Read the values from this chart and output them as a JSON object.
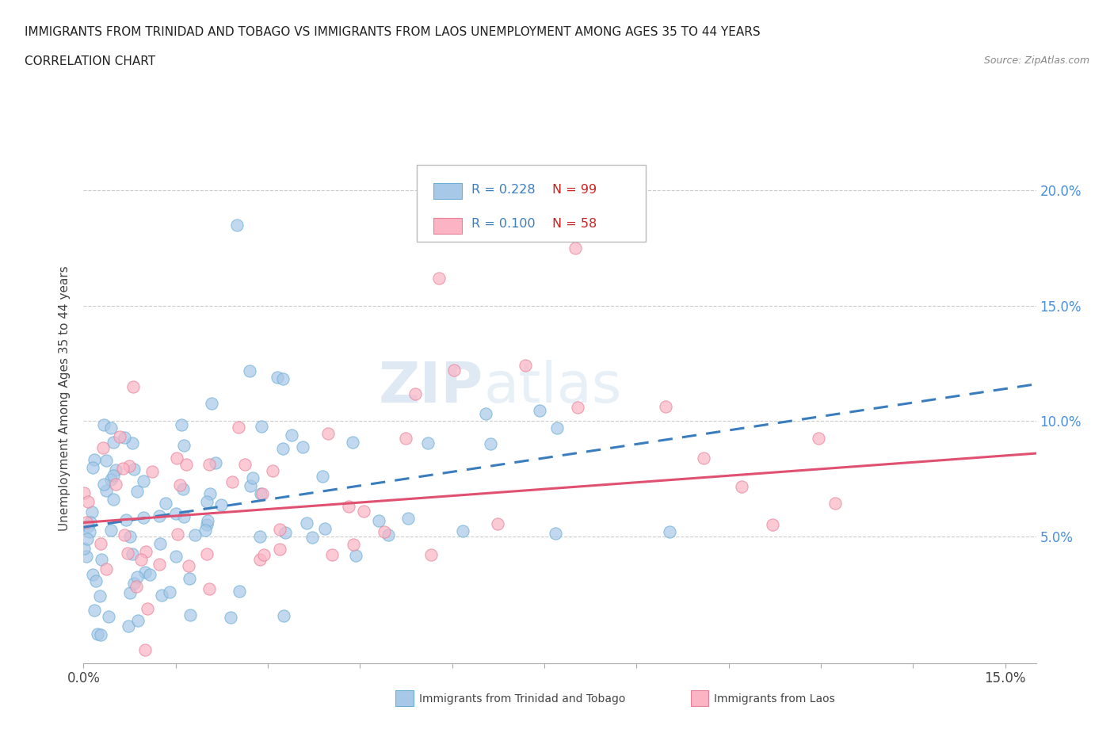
{
  "title_line1": "IMMIGRANTS FROM TRINIDAD AND TOBAGO VS IMMIGRANTS FROM LAOS UNEMPLOYMENT AMONG AGES 35 TO 44 YEARS",
  "title_line2": "CORRELATION CHART",
  "source_text": "Source: ZipAtlas.com",
  "ylabel": "Unemployment Among Ages 35 to 44 years",
  "xlim": [
    0.0,
    0.155
  ],
  "ylim": [
    -0.005,
    0.225
  ],
  "ytick_right": [
    0.05,
    0.1,
    0.15,
    0.2
  ],
  "ytick_right_labels": [
    "5.0%",
    "10.0%",
    "15.0%",
    "20.0%"
  ],
  "color_tt": "#a8c8e8",
  "color_tt_edge": "#6baed6",
  "color_laos": "#fbb4c4",
  "color_laos_edge": "#e88098",
  "color_tt_line": "#3a7dbf",
  "color_laos_line": "#e05070",
  "N_tt": 99,
  "N_laos": 58,
  "legend_R_tt": "R = 0.228",
  "legend_N_tt": "N = 99",
  "legend_R_laos": "R = 0.100",
  "legend_N_laos": "N = 58",
  "tt_line_x0": 0.0,
  "tt_line_y0": 0.054,
  "tt_line_x1": 0.155,
  "tt_line_y1": 0.116,
  "laos_line_x0": 0.0,
  "laos_line_y0": 0.056,
  "laos_line_x1": 0.155,
  "laos_line_y1": 0.086
}
